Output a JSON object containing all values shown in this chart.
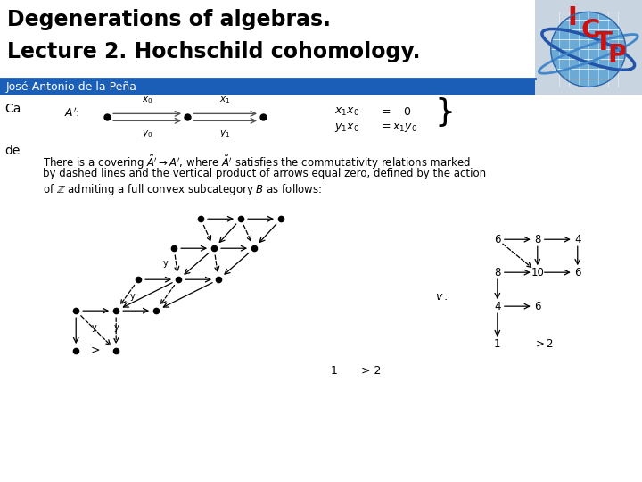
{
  "title_line1": "Degenerations of algebras.",
  "title_line2": "Lecture 2. Hochschild cohomology.",
  "author": "José-Antonio de la Peña",
  "author_bar_color": "#1a5eb8",
  "body_bg": "#ffffff",
  "case_label": "Ca",
  "de_label": "de"
}
